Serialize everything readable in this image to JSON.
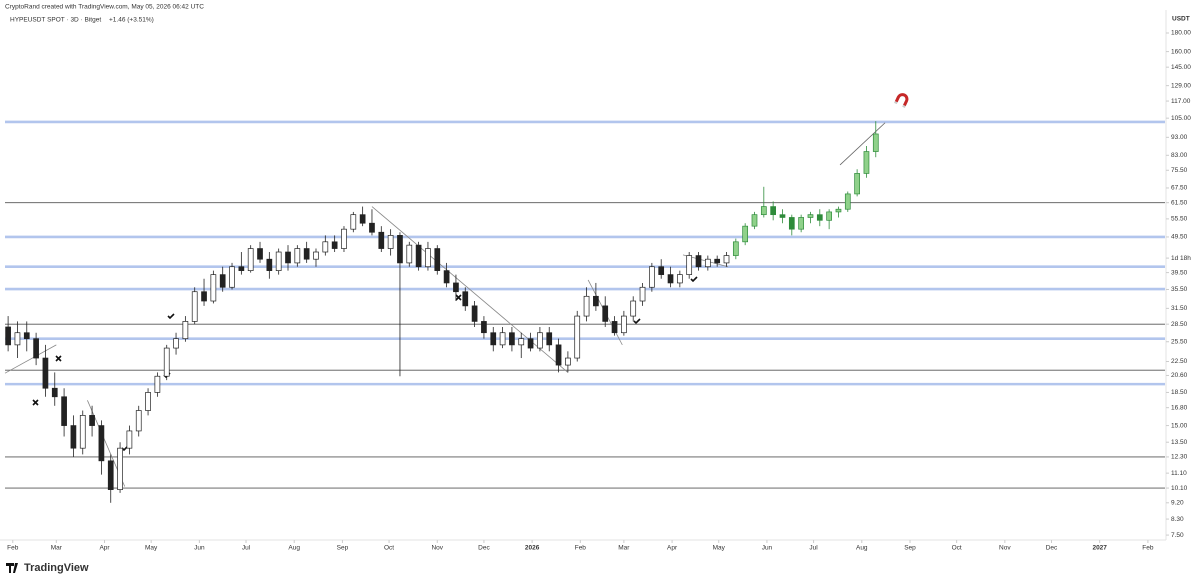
{
  "header": {
    "credit": "CryptoRand created with TradingView.com, May 05, 2026 06:42 UTC"
  },
  "footer": {
    "brand": "TradingView"
  },
  "chart_data": {
    "type": "candlestick",
    "title": "HYPEUSDT SPOT · 3D · Bitget",
    "change": "+1.46 (+3.51%)",
    "y_label": "USDT",
    "log_y": true,
    "xlim": [
      "2025-01-27",
      "2027-02-12"
    ],
    "ylim": [
      7.27,
      205.6
    ],
    "xticks": [
      {
        "value": "2025-02-01",
        "label": "Feb"
      },
      {
        "value": "2025-03-01",
        "label": "Mar"
      },
      {
        "value": "2025-04-01",
        "label": "Apr"
      },
      {
        "value": "2025-05-01",
        "label": "May"
      },
      {
        "value": "2025-06-01",
        "label": "Jun"
      },
      {
        "value": "2025-07-01",
        "label": "Jul"
      },
      {
        "value": "2025-08-01",
        "label": "Aug"
      },
      {
        "value": "2025-09-01",
        "label": "Sep"
      },
      {
        "value": "2025-10-01",
        "label": "Oct"
      },
      {
        "value": "2025-11-01",
        "label": "Nov"
      },
      {
        "value": "2025-12-01",
        "label": "Dec"
      },
      {
        "value": "2026-01-01",
        "label": "2026"
      },
      {
        "value": "2026-02-01",
        "label": "Feb"
      },
      {
        "value": "2026-03-01",
        "label": "Mar"
      },
      {
        "value": "2026-04-01",
        "label": "Apr"
      },
      {
        "value": "2026-05-01",
        "label": "May"
      },
      {
        "value": "2026-06-01",
        "label": "Jun"
      },
      {
        "value": "2026-07-01",
        "label": "Jul"
      },
      {
        "value": "2026-08-01",
        "label": "Aug"
      },
      {
        "value": "2026-09-01",
        "label": "Sep"
      },
      {
        "value": "2026-10-01",
        "label": "Oct"
      },
      {
        "value": "2026-11-01",
        "label": "Nov"
      },
      {
        "value": "2026-12-01",
        "label": "Dec"
      },
      {
        "value": "2027-01-01",
        "label": "2027"
      },
      {
        "value": "2027-02-01",
        "label": "Feb"
      }
    ],
    "yticks": [
      {
        "value": 180,
        "label": "180.00"
      },
      {
        "value": 160,
        "label": "160.00"
      },
      {
        "value": 145,
        "label": "145.00"
      },
      {
        "value": 129,
        "label": "129.00"
      },
      {
        "value": 117,
        "label": "117.00"
      },
      {
        "value": 105,
        "label": "105.00"
      },
      {
        "value": 93,
        "label": "93.00"
      },
      {
        "value": 83,
        "label": "83.00"
      },
      {
        "value": 75.5,
        "label": "75.50"
      },
      {
        "value": 67.5,
        "label": "67.50"
      },
      {
        "value": 61.5,
        "label": "61.50"
      },
      {
        "value": 55.5,
        "label": "55.50"
      },
      {
        "value": 49.5,
        "label": "49.50"
      },
      {
        "value": 43.3,
        "label": "1d 18h"
      },
      {
        "value": 39.5,
        "label": "39.50"
      },
      {
        "value": 35.5,
        "label": "35.50"
      },
      {
        "value": 31.5,
        "label": "31.50"
      },
      {
        "value": 28.5,
        "label": "28.50"
      },
      {
        "value": 25.5,
        "label": "25.50"
      },
      {
        "value": 22.5,
        "label": "22.50"
      },
      {
        "value": 20.6,
        "label": "20.60"
      },
      {
        "value": 18.5,
        "label": "18.50"
      },
      {
        "value": 16.8,
        "label": "16.80"
      },
      {
        "value": 15,
        "label": "15.00"
      },
      {
        "value": 13.5,
        "label": "13.50"
      },
      {
        "value": 12.3,
        "label": "12.30"
      },
      {
        "value": 11.1,
        "label": "11.10"
      },
      {
        "value": 10.1,
        "label": "10.10"
      },
      {
        "value": 9.2,
        "label": "9.20"
      },
      {
        "value": 8.3,
        "label": "8.30"
      },
      {
        "value": 7.5,
        "label": "7.50"
      }
    ],
    "levels": [
      {
        "value": 102.5,
        "color": "#9fb6e8"
      },
      {
        "value": 61.5,
        "color": "#555555"
      },
      {
        "value": 49.5,
        "color": "#9fb6e8"
      },
      {
        "value": 41,
        "color": "#9fb6e8"
      },
      {
        "value": 35.6,
        "color": "#9fb6e8"
      },
      {
        "value": 28.5,
        "color": "#555555"
      },
      {
        "value": 26,
        "color": "#9fb6e8"
      },
      {
        "value": 21.3,
        "color": "#555555"
      },
      {
        "value": 19.5,
        "color": "#9fb6e8"
      },
      {
        "value": 12.3,
        "color": "#555555"
      },
      {
        "value": 10.1,
        "color": "#555555"
      }
    ],
    "trendlines": [
      {
        "x": [
          "2025-09-20",
          "2026-01-24"
        ],
        "y": [
          60,
          21
        ],
        "color": "#888888"
      },
      {
        "x": [
          "2025-03-21",
          "2025-04-14"
        ],
        "y": [
          17.6,
          10.2
        ],
        "color": "#888888"
      },
      {
        "x": [
          "2025-01-27",
          "2025-03-01"
        ],
        "y": [
          20.9,
          25
        ],
        "color": "#888888"
      },
      {
        "x": [
          "2026-02-06",
          "2026-02-28"
        ],
        "y": [
          37.7,
          25
        ],
        "color": "#888888"
      },
      {
        "x": [
          "2026-04-08",
          "2026-05-07"
        ],
        "y": [
          44.2,
          41
        ],
        "color": "#888888"
      },
      {
        "x": [
          "2026-07-18",
          "2026-08-16"
        ],
        "y": [
          78.1,
          102
        ],
        "color": "#666666"
      }
    ],
    "series": [
      {
        "up_fill": "#ffffff",
        "down_fill": "#222222",
        "color": "#222222",
        "x": [
          "2025-01-29",
          "2025-02-04",
          "2025-02-10",
          "2025-02-16",
          "2025-02-22",
          "2025-02-28",
          "2025-03-06",
          "2025-03-12",
          "2025-03-18",
          "2025-03-24",
          "2025-03-30",
          "2025-04-05",
          "2025-04-11",
          "2025-04-17",
          "2025-04-23",
          "2025-04-29",
          "2025-05-05",
          "2025-05-11",
          "2025-05-17",
          "2025-05-23",
          "2025-05-29",
          "2025-06-04",
          "2025-06-10",
          "2025-06-16",
          "2025-06-22",
          "2025-06-28",
          "2025-07-04",
          "2025-07-10",
          "2025-07-16",
          "2025-07-22",
          "2025-07-28",
          "2025-08-03",
          "2025-08-09",
          "2025-08-15",
          "2025-08-21",
          "2025-08-27",
          "2025-09-02",
          "2025-09-08",
          "2025-09-14",
          "2025-09-20",
          "2025-09-26",
          "2025-10-02",
          "2025-10-08",
          "2025-10-14",
          "2025-10-20",
          "2025-10-26",
          "2025-11-01",
          "2025-11-07",
          "2025-11-13",
          "2025-11-19",
          "2025-11-25",
          "2025-12-01",
          "2025-12-07",
          "2025-12-13",
          "2025-12-19",
          "2025-12-25",
          "2025-12-31",
          "2026-01-06",
          "2026-01-12",
          "2026-01-18",
          "2026-01-24",
          "2026-01-30",
          "2026-02-05",
          "2026-02-11",
          "2026-02-17",
          "2026-02-23",
          "2026-03-01",
          "2026-03-07",
          "2026-03-13",
          "2026-03-19",
          "2026-03-25",
          "2026-03-31",
          "2026-04-06",
          "2026-04-12",
          "2026-04-18",
          "2026-04-24",
          "2026-04-30",
          "2026-05-06"
        ],
        "ohlc": [
          [
            28,
            30,
            24,
            25
          ],
          [
            25,
            29,
            23,
            27
          ],
          [
            27,
            29,
            24,
            26
          ],
          [
            26,
            27,
            22,
            23
          ],
          [
            23,
            25,
            18,
            19
          ],
          [
            19,
            21,
            17,
            18
          ],
          [
            18,
            19,
            14,
            15
          ],
          [
            15,
            16,
            12.3,
            13
          ],
          [
            13,
            16.5,
            12.5,
            16
          ],
          [
            16,
            17,
            14,
            15
          ],
          [
            15,
            15.5,
            11,
            12
          ],
          [
            12,
            12.5,
            9.2,
            10
          ],
          [
            10,
            13.5,
            9.8,
            13
          ],
          [
            13,
            15,
            12.5,
            14.5
          ],
          [
            14.5,
            17,
            14,
            16.5
          ],
          [
            16.5,
            19,
            16,
            18.5
          ],
          [
            18.5,
            21,
            18,
            20.5
          ],
          [
            20.5,
            25,
            20,
            24.5
          ],
          [
            24.5,
            27,
            23.5,
            26
          ],
          [
            26,
            30,
            25.5,
            29
          ],
          [
            29,
            36,
            28.5,
            35
          ],
          [
            35,
            38,
            32,
            33
          ],
          [
            33,
            40,
            32.5,
            39
          ],
          [
            39,
            41,
            35,
            36
          ],
          [
            36,
            42,
            35.5,
            41
          ],
          [
            41,
            45,
            39,
            40
          ],
          [
            40,
            47,
            39.5,
            46
          ],
          [
            46,
            48,
            42,
            43
          ],
          [
            43,
            45,
            38,
            40
          ],
          [
            40,
            46,
            39,
            45
          ],
          [
            45,
            47,
            40,
            42
          ],
          [
            42,
            47,
            41,
            46
          ],
          [
            46,
            48,
            42,
            43
          ],
          [
            43,
            46,
            41,
            45
          ],
          [
            45,
            50,
            44,
            48
          ],
          [
            48,
            50,
            45,
            46
          ],
          [
            46,
            53,
            45,
            52
          ],
          [
            52,
            58,
            51,
            57
          ],
          [
            57,
            60,
            53,
            54
          ],
          [
            54,
            59,
            50,
            51
          ],
          [
            51,
            53,
            45,
            46
          ],
          [
            46,
            52,
            44,
            50
          ],
          [
            50,
            51,
            20.5,
            42
          ],
          [
            42,
            48,
            41,
            47
          ],
          [
            47,
            48,
            40,
            41
          ],
          [
            41,
            48,
            40,
            46
          ],
          [
            46,
            47,
            39,
            40
          ],
          [
            40,
            42,
            36,
            37
          ],
          [
            37,
            39,
            33,
            35
          ],
          [
            35,
            36,
            31,
            32
          ],
          [
            32,
            33,
            28,
            29
          ],
          [
            29,
            30,
            26,
            27
          ],
          [
            27,
            28,
            24,
            25
          ],
          [
            25,
            28,
            24.5,
            27
          ],
          [
            27,
            28,
            24,
            25
          ],
          [
            25,
            27,
            23,
            26
          ],
          [
            26,
            27,
            24,
            24.5
          ],
          [
            24.5,
            28,
            24,
            27
          ],
          [
            27,
            28,
            24,
            25
          ],
          [
            25,
            26,
            21,
            22
          ],
          [
            22,
            24,
            21,
            23
          ],
          [
            23,
            31,
            22.5,
            30
          ],
          [
            30,
            36,
            29,
            34
          ],
          [
            34,
            37,
            31,
            32
          ],
          [
            32,
            34,
            28,
            29
          ],
          [
            29,
            30,
            26.5,
            27
          ],
          [
            27,
            31,
            26.5,
            30
          ],
          [
            30,
            34,
            29,
            33
          ],
          [
            33,
            37,
            32,
            36
          ],
          [
            36,
            42,
            35,
            41
          ],
          [
            41,
            43,
            38,
            39
          ],
          [
            39,
            41,
            36,
            37
          ],
          [
            37,
            40,
            36,
            39
          ],
          [
            39,
            45,
            38,
            44
          ],
          [
            44,
            45,
            40,
            41
          ],
          [
            41,
            44,
            40,
            43
          ],
          [
            43,
            44,
            41,
            42
          ],
          [
            42,
            45,
            41,
            44
          ]
        ]
      },
      {
        "up_fill": "#8fd18a",
        "down_fill": "#2e8b3a",
        "color": "#2e8b3a",
        "x": [
          "2026-05-12",
          "2026-05-18",
          "2026-05-24",
          "2026-05-30",
          "2026-06-05",
          "2026-06-11",
          "2026-06-17",
          "2026-06-23",
          "2026-06-29",
          "2026-07-05",
          "2026-07-11",
          "2026-07-17",
          "2026-07-23",
          "2026-07-29",
          "2026-08-04",
          "2026-08-10"
        ],
        "ohlc": [
          [
            44,
            49,
            43,
            48
          ],
          [
            48,
            54,
            47,
            53
          ],
          [
            53,
            58,
            52,
            57
          ],
          [
            57,
            68,
            56,
            60
          ],
          [
            60,
            62,
            55,
            57
          ],
          [
            57,
            59,
            54,
            56
          ],
          [
            56,
            57,
            50,
            52
          ],
          [
            52,
            57,
            51,
            56
          ],
          [
            56,
            58,
            54,
            57
          ],
          [
            57,
            59,
            53,
            55
          ],
          [
            55,
            59,
            52,
            58
          ],
          [
            58,
            60,
            56,
            59
          ],
          [
            59,
            66,
            58,
            65
          ],
          [
            65,
            76,
            64,
            74
          ],
          [
            74,
            88,
            72,
            85
          ],
          [
            85,
            103,
            82,
            95
          ]
        ]
      }
    ]
  }
}
